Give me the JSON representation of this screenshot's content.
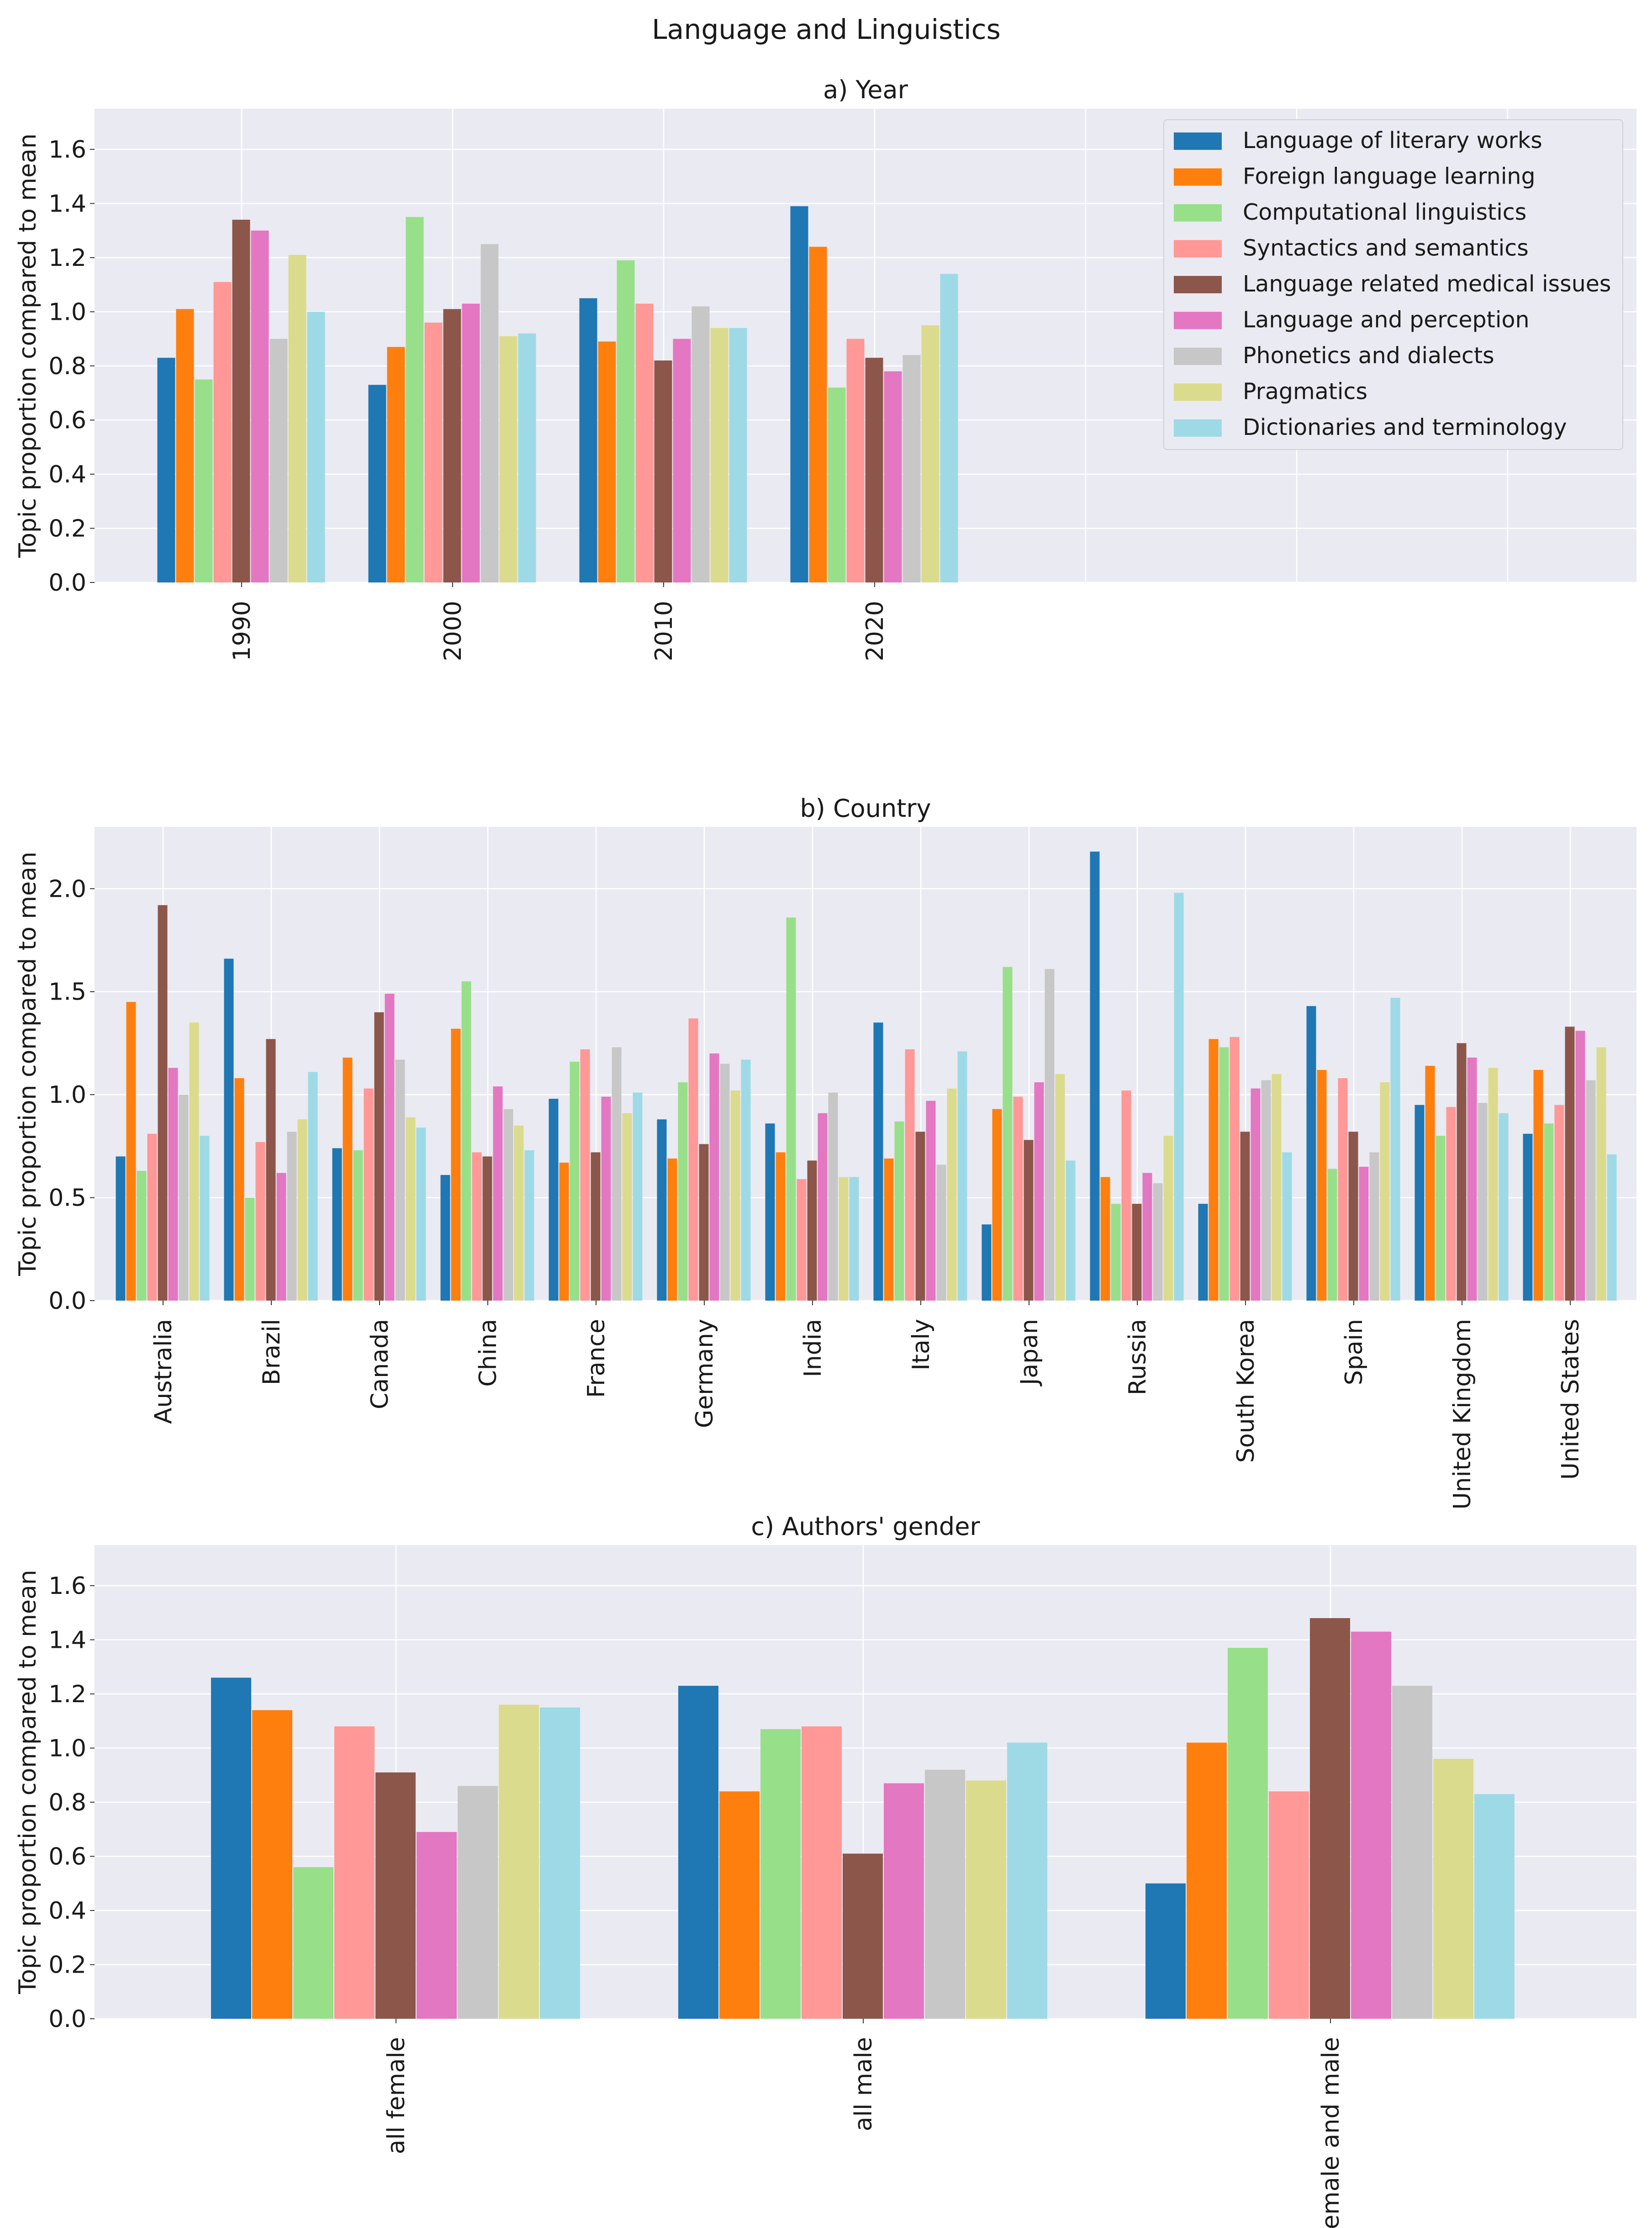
{
  "chart_data": {
    "type": "bar",
    "title": "Language and Linguistics",
    "ylabel": "Topic proportion compared to mean",
    "series_names": [
      "Language of literary works",
      "Foreign language learning",
      "Computational linguistics",
      "Syntactics and semantics",
      "Language related medical issues",
      "Language and perception",
      "Phonetics and dialects",
      "Pragmatics",
      "Dictionaries and terminology"
    ],
    "colors": [
      "#1f77b4",
      "#ff7f0e",
      "#98df8a",
      "#ff9896",
      "#8c564b",
      "#e377c2",
      "#c7c7c7",
      "#dbdb8d",
      "#9edae5"
    ],
    "legend_position": "top-right",
    "panels": [
      {
        "title": "a) Year",
        "ylim": [
          0,
          1.75
        ],
        "yticks": [
          "0.0",
          "0.2",
          "0.4",
          "0.6",
          "0.8",
          "1.0",
          "1.2",
          "1.4",
          "1.6"
        ],
        "categories": [
          "1990",
          "2000",
          "2010",
          "2020"
        ],
        "values": [
          [
            0.83,
            1.01,
            0.75,
            1.11,
            1.34,
            1.3,
            0.9,
            1.21,
            1.0
          ],
          [
            0.73,
            0.87,
            1.35,
            0.96,
            1.01,
            1.03,
            1.25,
            0.91,
            0.92
          ],
          [
            1.05,
            0.89,
            1.19,
            1.03,
            0.82,
            0.9,
            1.02,
            0.94,
            0.94
          ],
          [
            1.39,
            1.24,
            0.72,
            0.9,
            0.83,
            0.78,
            0.84,
            0.95,
            1.14
          ]
        ]
      },
      {
        "title": "b) Country",
        "ylim": [
          0,
          2.3
        ],
        "yticks": [
          "0.0",
          "0.5",
          "1.0",
          "1.5",
          "2.0"
        ],
        "categories": [
          "Australia",
          "Brazil",
          "Canada",
          "China",
          "France",
          "Germany",
          "India",
          "Italy",
          "Japan",
          "Russia",
          "South Korea",
          "Spain",
          "United Kingdom",
          "United States"
        ],
        "values": [
          [
            0.7,
            1.45,
            0.63,
            0.81,
            1.92,
            1.13,
            1.0,
            1.35,
            0.8
          ],
          [
            1.66,
            1.08,
            0.5,
            0.77,
            1.27,
            0.62,
            0.82,
            0.88,
            1.11
          ],
          [
            0.74,
            1.18,
            0.73,
            1.03,
            1.4,
            1.49,
            1.17,
            0.89,
            0.84
          ],
          [
            0.61,
            1.32,
            1.55,
            0.72,
            0.7,
            1.04,
            0.93,
            0.85,
            0.73
          ],
          [
            0.98,
            0.67,
            1.16,
            1.22,
            0.72,
            0.99,
            1.23,
            0.91,
            1.01
          ],
          [
            0.88,
            0.69,
            1.06,
            1.37,
            0.76,
            1.2,
            1.15,
            1.02,
            1.17
          ],
          [
            0.86,
            0.72,
            1.86,
            0.59,
            0.68,
            0.91,
            1.01,
            0.6,
            0.6
          ],
          [
            1.35,
            0.69,
            0.87,
            1.22,
            0.82,
            0.97,
            0.66,
            1.03,
            1.21
          ],
          [
            0.37,
            0.93,
            1.62,
            0.99,
            0.78,
            1.06,
            1.61,
            1.1,
            0.68
          ],
          [
            2.18,
            0.6,
            0.47,
            1.02,
            0.47,
            0.62,
            0.57,
            0.8,
            1.98
          ],
          [
            0.47,
            1.27,
            1.23,
            1.28,
            0.82,
            1.03,
            1.07,
            1.1,
            0.72
          ],
          [
            1.43,
            1.12,
            0.64,
            1.08,
            0.82,
            0.65,
            0.72,
            1.06,
            1.47
          ],
          [
            0.95,
            1.14,
            0.8,
            0.94,
            1.25,
            1.18,
            0.96,
            1.13,
            0.91
          ],
          [
            0.81,
            1.12,
            0.86,
            0.95,
            1.33,
            1.31,
            1.07,
            1.23,
            0.71
          ]
        ]
      },
      {
        "title": "c) Authors' gender",
        "ylim": [
          0,
          1.75
        ],
        "yticks": [
          "0.0",
          "0.2",
          "0.4",
          "0.6",
          "0.8",
          "1.0",
          "1.2",
          "1.4",
          "1.6"
        ],
        "categories": [
          "all female",
          "all male",
          "female and male"
        ],
        "values": [
          [
            1.26,
            1.14,
            0.56,
            1.08,
            0.91,
            0.69,
            0.86,
            1.16,
            1.15
          ],
          [
            1.23,
            0.84,
            1.07,
            1.08,
            0.61,
            0.87,
            0.92,
            0.88,
            1.02
          ],
          [
            0.5,
            1.02,
            1.37,
            0.84,
            1.48,
            1.43,
            1.23,
            0.96,
            0.83
          ]
        ]
      }
    ]
  }
}
